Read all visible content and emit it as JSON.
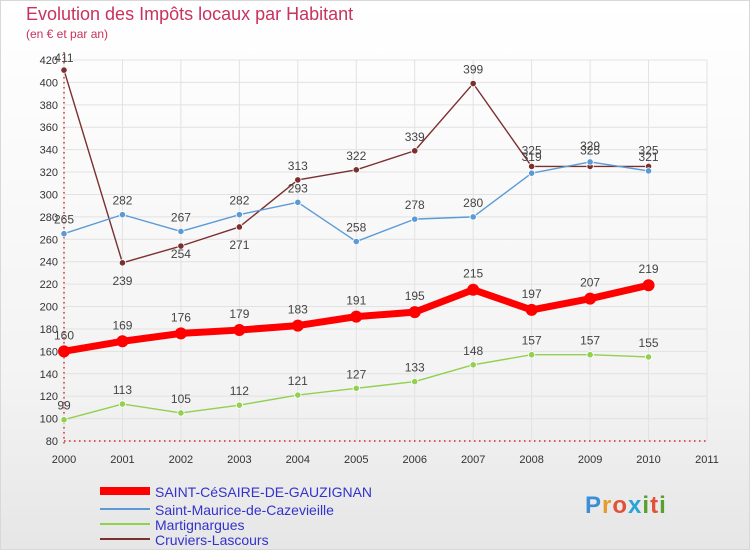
{
  "chart_data": {
    "type": "line",
    "title": "Evolution des Impôts locaux par Habitant",
    "subtitle": "(en € et par an)",
    "x": [
      2000,
      2001,
      2002,
      2003,
      2004,
      2005,
      2006,
      2007,
      2008,
      2009,
      2010
    ],
    "x_ticks": [
      "2000",
      "2001",
      "2002",
      "2003",
      "2004",
      "2005",
      "2006",
      "2007",
      "2008",
      "2009",
      "2010",
      "2011"
    ],
    "xlim": [
      2000,
      2011
    ],
    "ylim": [
      80,
      420
    ],
    "y_ticks": [
      80,
      100,
      120,
      140,
      160,
      180,
      200,
      220,
      240,
      260,
      280,
      300,
      320,
      340,
      360,
      380,
      400,
      420
    ],
    "series": [
      {
        "name": "SAINT-CéSAIRE-DE-GAUZIGNAN",
        "color": "#ff0000",
        "values": [
          160,
          169,
          176,
          179,
          183,
          191,
          195,
          215,
          197,
          207,
          219
        ]
      },
      {
        "name": "Saint-Maurice-de-Cazevieille",
        "color": "#5b9bd5",
        "values": [
          265,
          282,
          267,
          282,
          293,
          258,
          278,
          280,
          319,
          329,
          321
        ]
      },
      {
        "name": "Martignargues",
        "color": "#92d050",
        "values": [
          99,
          113,
          105,
          112,
          121,
          127,
          133,
          148,
          157,
          157,
          155
        ]
      },
      {
        "name": "Cruviers-Lascours",
        "color": "#7b2f2f",
        "values": [
          411,
          239,
          254,
          271,
          313,
          322,
          339,
          399,
          325,
          325,
          325
        ]
      }
    ]
  },
  "logo": {
    "letters": [
      "P",
      "r",
      "o",
      "x",
      "i",
      "t",
      "i"
    ],
    "colors": [
      "#3b8fd9",
      "#e89a2c",
      "#e0533a",
      "#2aa3d8",
      "#5aa02c",
      "#e0533a",
      "#5aa02c"
    ]
  }
}
